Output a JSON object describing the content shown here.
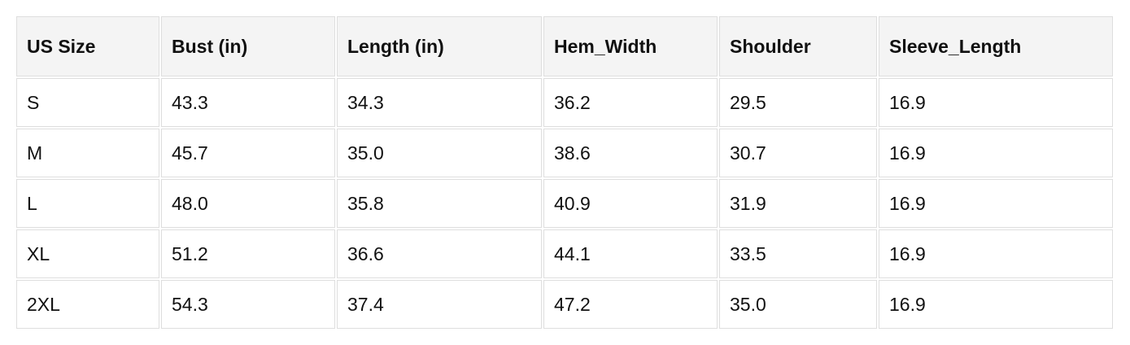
{
  "table": {
    "headers": [
      "US Size",
      "Bust (in)",
      "Length (in)",
      "Hem_Width",
      "Shoulder",
      "Sleeve_Length"
    ],
    "rows": [
      [
        "S",
        "43.3",
        "34.3",
        "36.2",
        "29.5",
        "16.9"
      ],
      [
        "M",
        "45.7",
        "35.0",
        "38.6",
        "30.7",
        "16.9"
      ],
      [
        "L",
        "48.0",
        "35.8",
        "40.9",
        "31.9",
        "16.9"
      ],
      [
        "XL",
        "51.2",
        "36.6",
        "44.1",
        "33.5",
        "16.9"
      ],
      [
        "2XL",
        "54.3",
        "37.4",
        "47.2",
        "35.0",
        "16.9"
      ]
    ]
  }
}
